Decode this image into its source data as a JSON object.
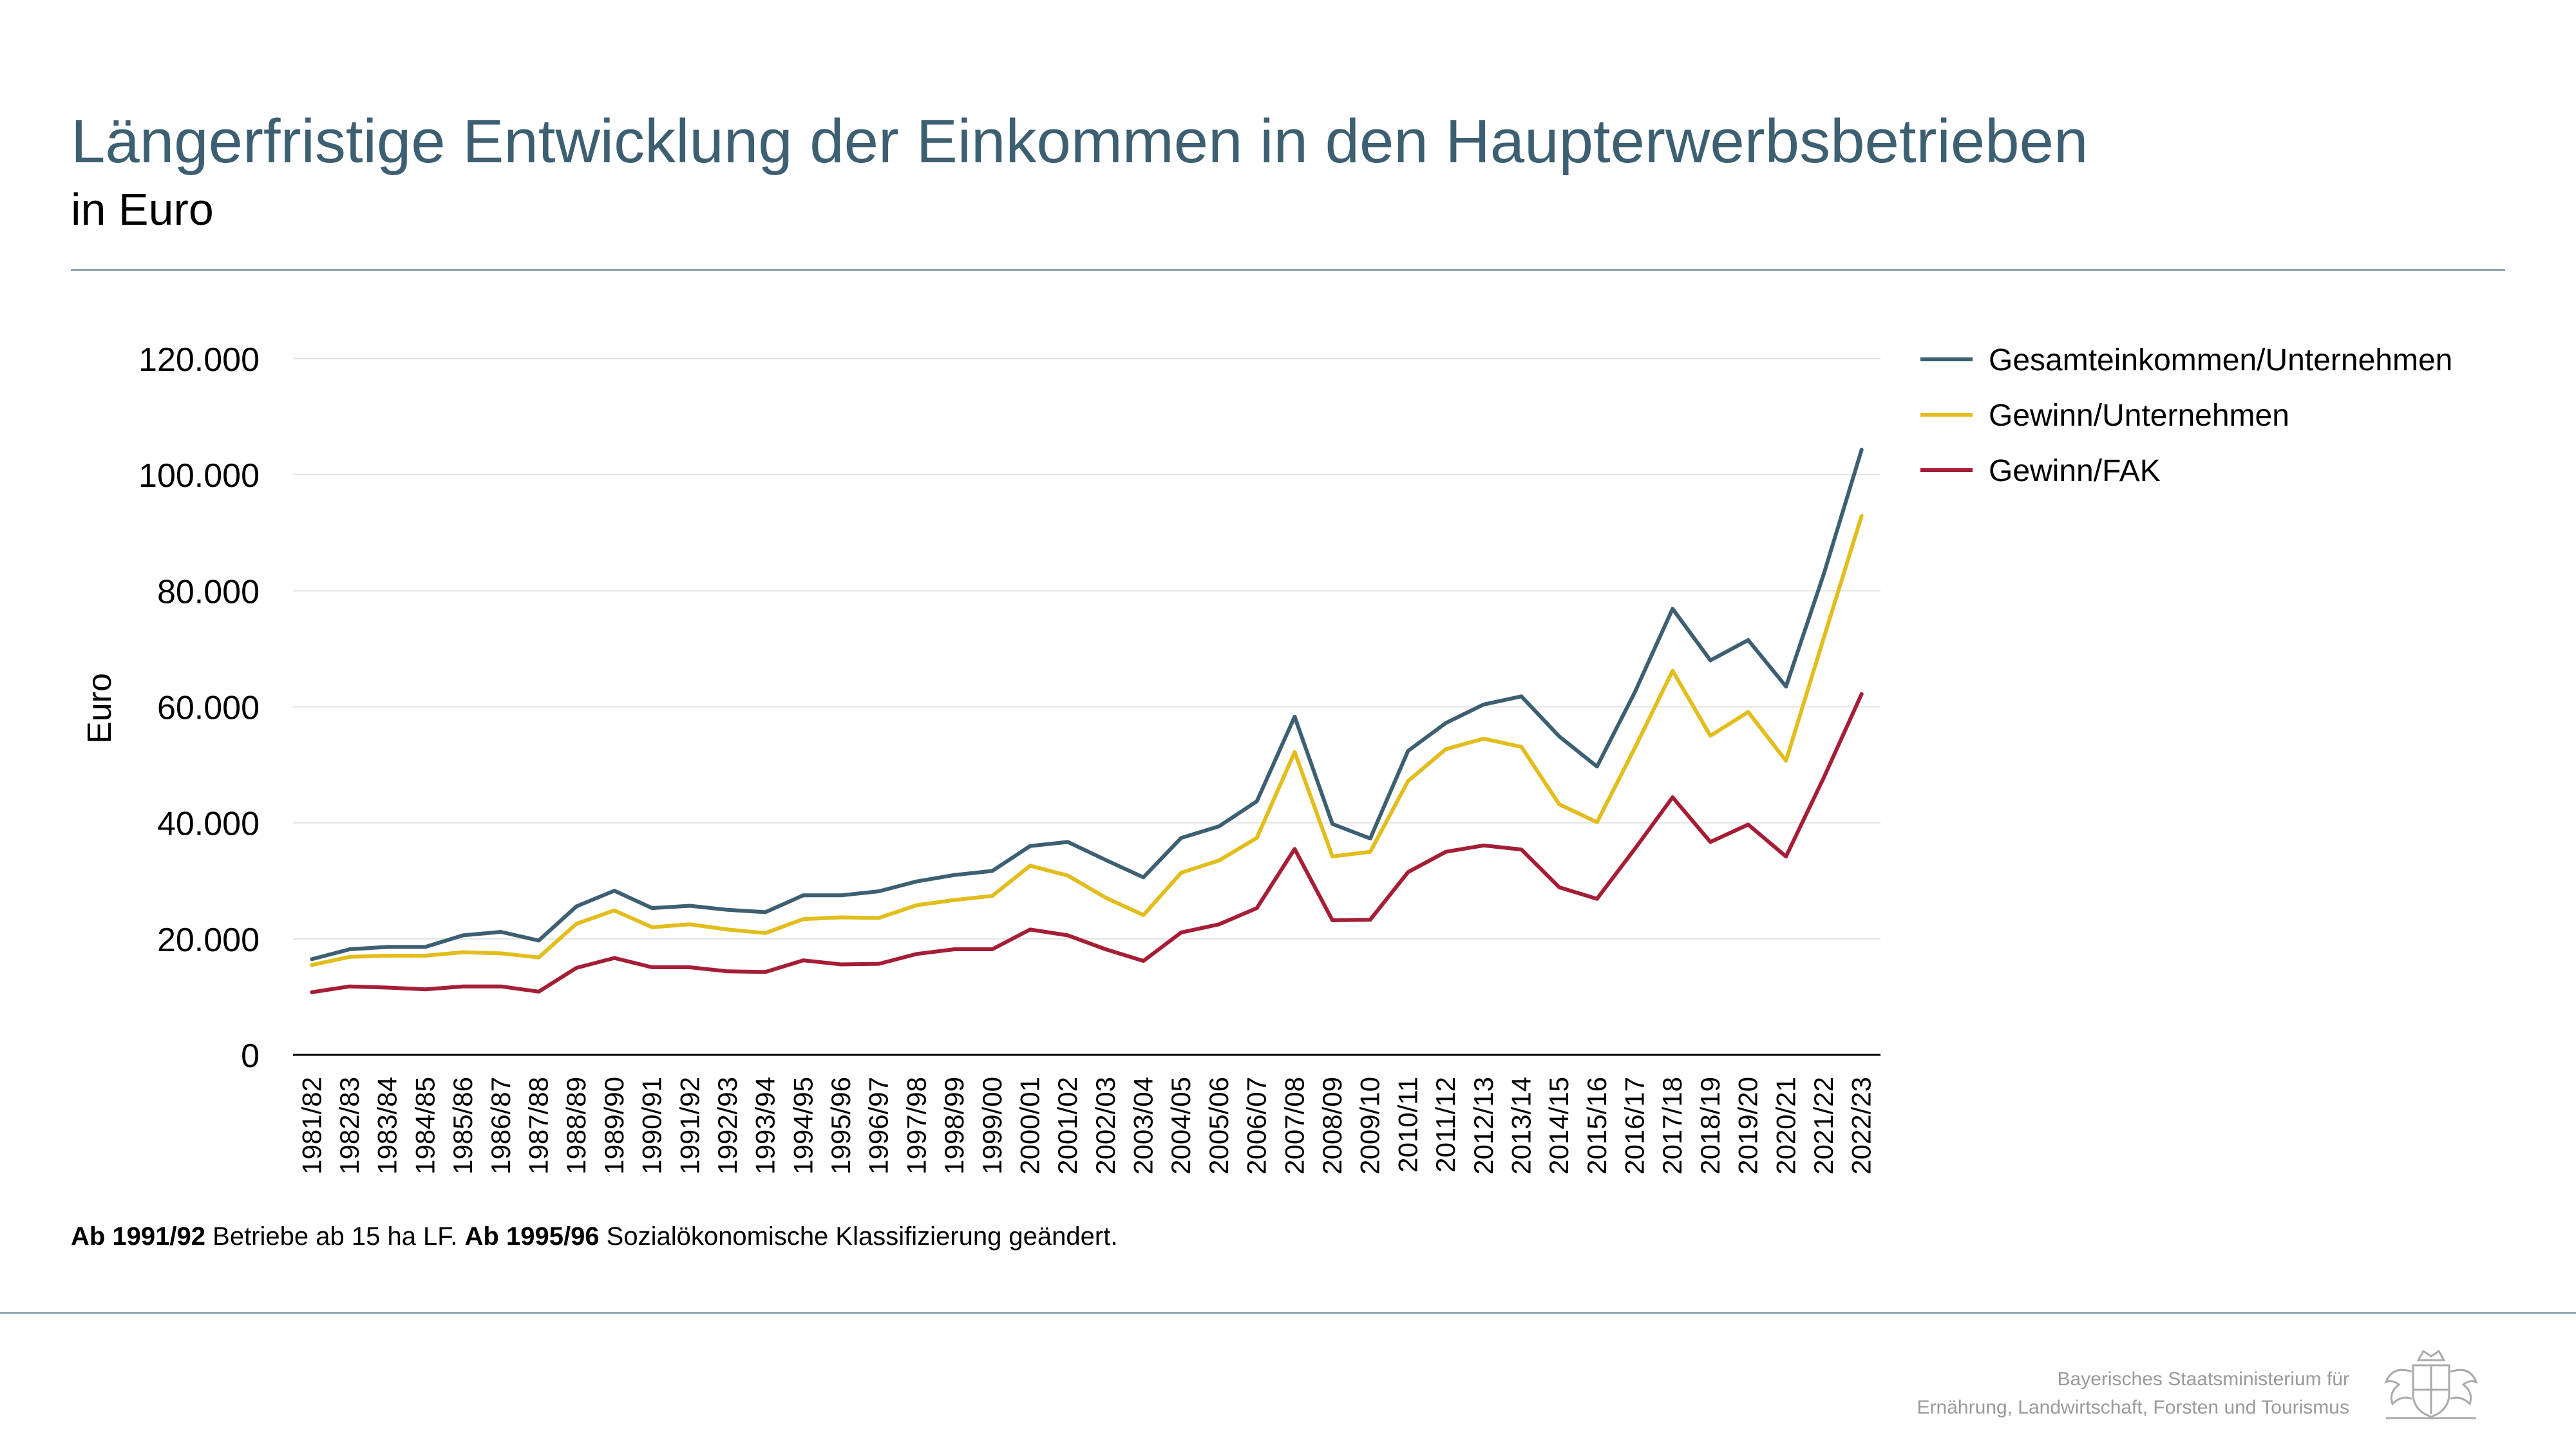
{
  "title": "Längerfristige Entwicklung der Einkommen in den Haupterwerbsbetrieben",
  "subtitle": "in Euro",
  "footnote": {
    "part1_bold": "Ab 1991/92",
    "part1_text": " Betriebe ab 15 ha LF. ",
    "part2_bold": "Ab 1995/96",
    "part2_text": " Sozialökonomische Klassifizierung geändert."
  },
  "ministry": {
    "line1": "Bayerisches Staatsministerium für",
    "line2": "Ernährung, Landwirtschaft, Forsten und Tourismus"
  },
  "colors": {
    "title": "#3d5f72",
    "rule": "#8fa6b4"
  },
  "chart_data": {
    "type": "line",
    "ylabel": "Euro",
    "ylim": [
      0,
      120000
    ],
    "yticks": [
      0,
      20000,
      40000,
      60000,
      80000,
      100000,
      120000
    ],
    "ytick_labels": [
      "0",
      "20.000",
      "40.000",
      "60.000",
      "80.000",
      "100.000",
      "120.000"
    ],
    "grid": true,
    "legend_position": "top-right",
    "categories": [
      "1981/82",
      "1982/83",
      "1983/84",
      "1984/85",
      "1985/86",
      "1986/87",
      "1987/88",
      "1988/89",
      "1989/90",
      "1990/91",
      "1991/92",
      "1992/93",
      "1993/94",
      "1994/95",
      "1995/96",
      "1996/97",
      "1997/98",
      "1998/99",
      "1999/00",
      "2000/01",
      "2001/02",
      "2002/03",
      "2003/04",
      "2004/05",
      "2005/06",
      "2006/07",
      "2007/08",
      "2008/09",
      "2009/10",
      "2010/11",
      "2011/12",
      "2012/13",
      "2013/14",
      "2014/15",
      "2015/16",
      "2016/17",
      "2017/18",
      "2018/19",
      "2019/20",
      "2020/21",
      "2021/22",
      "2022/23"
    ],
    "series": [
      {
        "name": "Gesamteinkommen/Unternehmen",
        "color": "#3d5f72",
        "values": [
          16500,
          18200,
          18600,
          18600,
          20600,
          21200,
          19700,
          25600,
          28300,
          25300,
          25700,
          25000,
          24600,
          27500,
          27500,
          28200,
          29900,
          31000,
          31700,
          36000,
          36700,
          33600,
          30600,
          37400,
          39400,
          43700,
          58300,
          39800,
          37300,
          52400,
          57200,
          60400,
          61800,
          54900,
          49700,
          62500,
          76900,
          68000,
          71500,
          63500,
          82900,
          104300
        ]
      },
      {
        "name": "Gewinn/Unternehmen",
        "color": "#e2bd1c",
        "values": [
          15500,
          16900,
          17100,
          17100,
          17700,
          17500,
          16800,
          22600,
          24900,
          22000,
          22500,
          21600,
          21000,
          23400,
          23700,
          23600,
          25800,
          26700,
          27400,
          32600,
          30900,
          27100,
          24100,
          31400,
          33500,
          37400,
          52200,
          34200,
          35000,
          47200,
          52700,
          54500,
          53100,
          43200,
          40100,
          52900,
          66200,
          55000,
          59100,
          50700,
          71900,
          92900
        ]
      },
      {
        "name": "Gewinn/FAK",
        "color": "#a51e36",
        "values": [
          10800,
          11800,
          11600,
          11300,
          11800,
          11800,
          10900,
          15000,
          16700,
          15100,
          15100,
          14400,
          14300,
          16300,
          15600,
          15700,
          17400,
          18200,
          18200,
          21600,
          20600,
          18200,
          16200,
          21100,
          22500,
          25300,
          35500,
          23200,
          23300,
          31500,
          35000,
          36100,
          35400,
          28900,
          26900,
          35500,
          44400,
          36700,
          39700,
          34200,
          47800,
          62200
        ]
      }
    ]
  }
}
